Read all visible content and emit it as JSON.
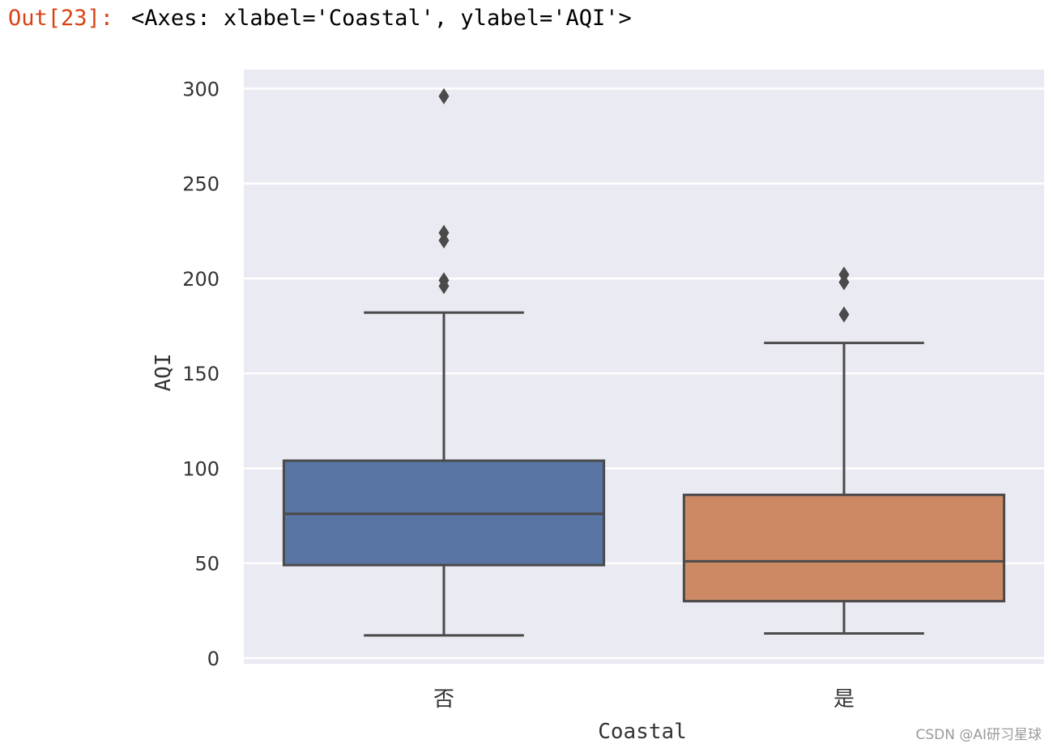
{
  "cell": {
    "prompt": "Out[23]:",
    "repr": "<Axes: xlabel='Coastal', ylabel='AQI'>"
  },
  "watermark": "CSDN @AI研习星球",
  "chart_data": {
    "type": "box",
    "xlabel": "Coastal",
    "ylabel": "AQI",
    "categories": [
      "否",
      "是"
    ],
    "ylim": [
      -3,
      310
    ],
    "yticks": [
      0,
      50,
      100,
      150,
      200,
      250,
      300
    ],
    "grid": true,
    "boxes": [
      {
        "category": "否",
        "color": "#5975a4",
        "whisker_low": 12,
        "q1": 49,
        "median": 76,
        "q3": 104,
        "whisker_high": 182,
        "outliers": [
          296,
          224,
          220,
          199,
          196
        ]
      },
      {
        "category": "是",
        "color": "#cc8963",
        "whisker_low": 13,
        "q1": 30,
        "median": 51,
        "q3": 86,
        "whisker_high": 166,
        "outliers": [
          202,
          198,
          181
        ]
      }
    ],
    "colors": {
      "plot_background": "#eaeaf2",
      "grid": "#ffffff",
      "line": "#4a4a4a",
      "tick_text": "#333333"
    }
  }
}
